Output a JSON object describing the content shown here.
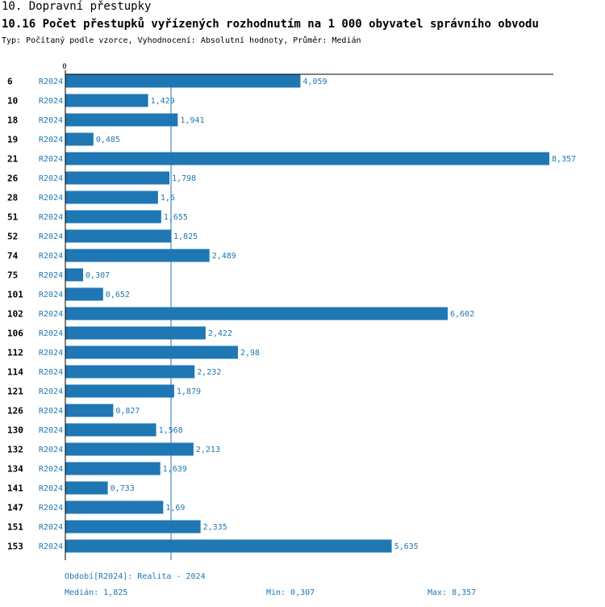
{
  "header": {
    "title": "10. Dopravní přestupky",
    "subtitle": "10.16 Počet přestupků vyřízených rozhodnutím na 1 000 obyvatel správního obvodu",
    "type_line": "Typ: Počítaný podle vzorce, Vyhodnocení: Absolutní hodnoty, Průměr: Medián"
  },
  "chart_data": {
    "type": "bar",
    "orientation": "horizontal",
    "zero_label": "0",
    "period_label": "R2024",
    "categories": [
      "6",
      "10",
      "18",
      "19",
      "21",
      "26",
      "28",
      "51",
      "52",
      "74",
      "75",
      "101",
      "102",
      "106",
      "112",
      "114",
      "121",
      "126",
      "130",
      "132",
      "134",
      "141",
      "147",
      "151",
      "153"
    ],
    "values": [
      4.059,
      1.429,
      1.941,
      0.485,
      8.357,
      1.798,
      1.6,
      1.655,
      1.825,
      2.489,
      0.307,
      0.652,
      6.602,
      2.422,
      2.98,
      2.232,
      1.879,
      0.827,
      1.568,
      2.213,
      1.639,
      0.733,
      1.69,
      2.335,
      5.635
    ],
    "value_labels": [
      "4,059",
      "1,429",
      "1,941",
      "0,485",
      "8,357",
      "1,798",
      "1,6",
      "1,655",
      "1,825",
      "2,489",
      "0,307",
      "0,652",
      "6,602",
      "2,422",
      "2,98",
      "2,232",
      "1,879",
      "0,827",
      "1,568",
      "2,213",
      "1,639",
      "0,733",
      "1,69",
      "2,335",
      "5,635"
    ],
    "median": 1.825,
    "xlim": [
      0,
      8.357
    ],
    "bar_color": "#1f77b4",
    "grid": false
  },
  "footer": {
    "period": "Období[R2024]: Realita - 2024",
    "median": "Medián: 1,825",
    "min": "Min: 0,307",
    "max": "Max: 8,357"
  }
}
